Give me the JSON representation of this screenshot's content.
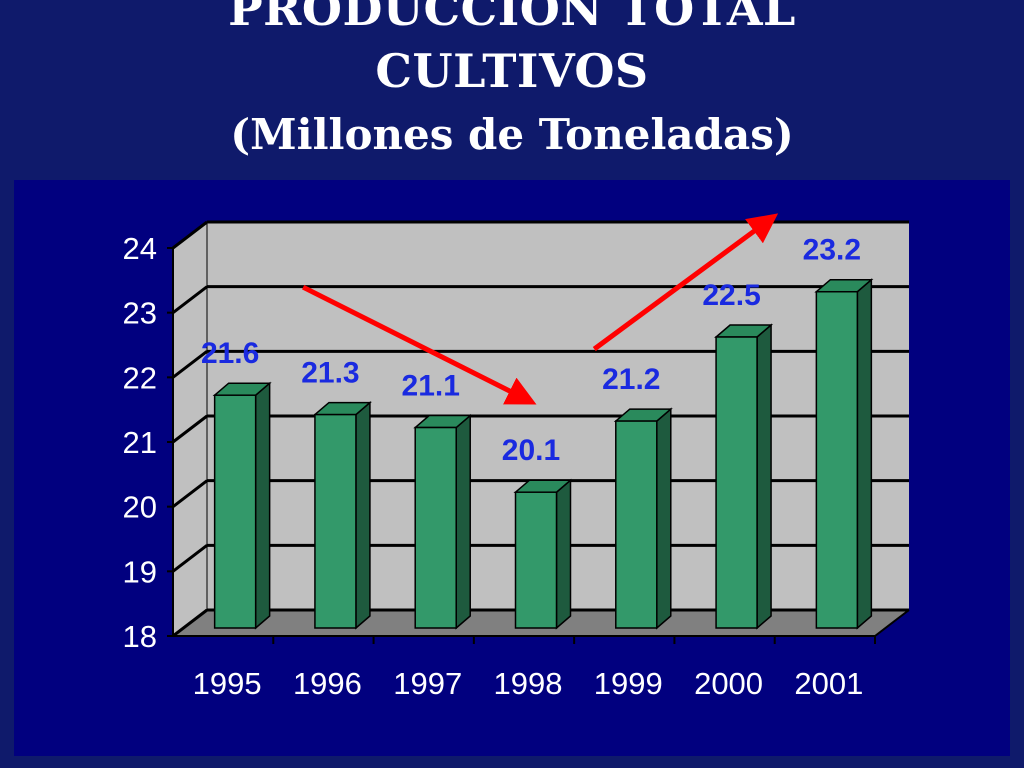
{
  "header": {
    "title_line1": "PRODUCCIÓN TOTAL",
    "title_line2": "CULTIVOS",
    "subtitle": "(Millones de Toneladas)"
  },
  "colors": {
    "background": "#0f1a6b",
    "panel": "#01007f",
    "bar_front": "#33996a",
    "bar_top": "#2a8a5c",
    "bar_side": "#1e5a3e",
    "plot_wall": "#c0c0c0",
    "plot_floor": "#808080",
    "data_label": "#1a2ae0",
    "trend_arrow": "#ff0000"
  },
  "chart_data": {
    "type": "bar",
    "categories": [
      "1995",
      "1996",
      "1997",
      "1998",
      "1999",
      "2000",
      "2001"
    ],
    "values": [
      21.6,
      21.3,
      21.1,
      20.1,
      21.2,
      22.5,
      23.2
    ],
    "data_labels": [
      "21.6",
      "21.3",
      "21.1",
      "20.1",
      "21.2",
      "22.5",
      "23.2"
    ],
    "y_ticks": [
      "18",
      "19",
      "20",
      "21",
      "22",
      "23",
      "24"
    ],
    "ylim": [
      18,
      24
    ],
    "grid": true,
    "legend": "none",
    "annotations": [
      {
        "type": "arrow",
        "description": "downward trend",
        "from_category": "1995",
        "to_category": "1998"
      },
      {
        "type": "arrow",
        "description": "upward trend",
        "from_category": "1999",
        "to_category": "2001"
      }
    ]
  }
}
